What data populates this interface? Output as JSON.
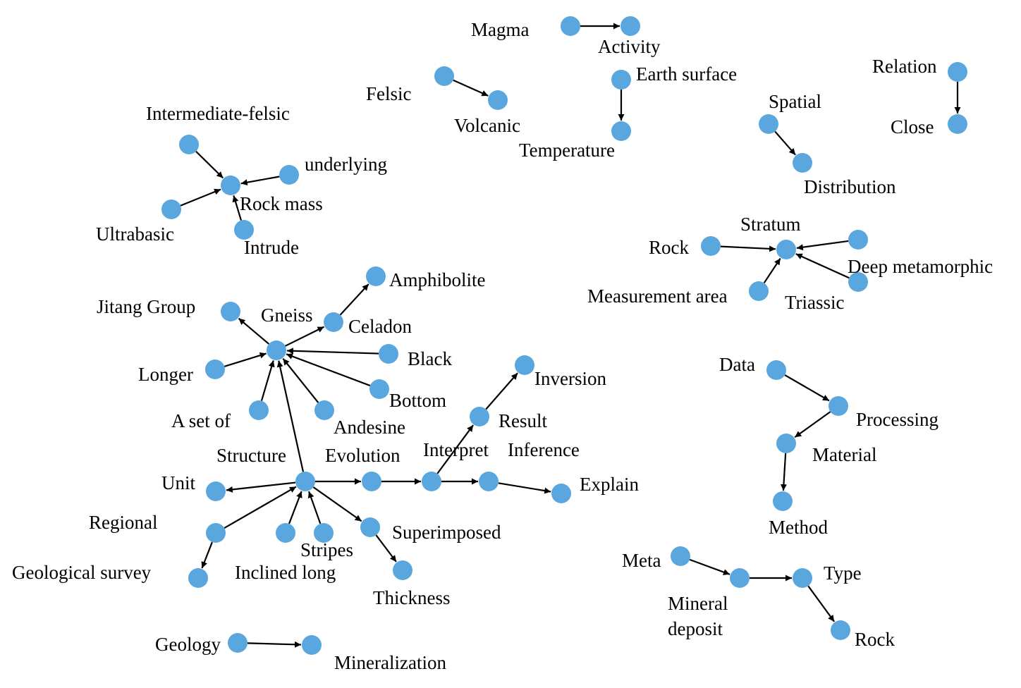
{
  "colors": {
    "node": "#5aa7df",
    "edge": "#000000",
    "label": "#000000"
  },
  "nodes": [
    {
      "id": "magma",
      "label": "Magma"
    },
    {
      "id": "activity",
      "label": "Activity"
    },
    {
      "id": "felsic",
      "label": "Felsic"
    },
    {
      "id": "volcanic",
      "label": "Volcanic"
    },
    {
      "id": "earth_surface",
      "label": "Earth surface"
    },
    {
      "id": "temperature",
      "label": "Temperature"
    },
    {
      "id": "relation",
      "label": "Relation"
    },
    {
      "id": "close",
      "label": "Close"
    },
    {
      "id": "spatial",
      "label": "Spatial"
    },
    {
      "id": "distribution",
      "label": "Distribution"
    },
    {
      "id": "intermediate_felsic",
      "label": "Intermediate-felsic"
    },
    {
      "id": "underlying",
      "label": "underlying"
    },
    {
      "id": "rock_mass",
      "label": "Rock mass"
    },
    {
      "id": "ultrabasic",
      "label": "Ultrabasic"
    },
    {
      "id": "intrude",
      "label": "Intrude"
    },
    {
      "id": "stratum",
      "label": "Stratum"
    },
    {
      "id": "rock1",
      "label": "Rock"
    },
    {
      "id": "deep_metamorphic",
      "label": "Deep metamorphic"
    },
    {
      "id": "unlabeled_deep",
      "label": ""
    },
    {
      "id": "measurement_area",
      "label": "Measurement area"
    },
    {
      "id": "triassic",
      "label": "Triassic"
    },
    {
      "id": "amphibolite",
      "label": "Amphibolite"
    },
    {
      "id": "jitang_group",
      "label": "Jitang Group"
    },
    {
      "id": "gneiss",
      "label": "Gneiss"
    },
    {
      "id": "celadon",
      "label": "Celadon"
    },
    {
      "id": "black",
      "label": "Black"
    },
    {
      "id": "longer",
      "label": "Longer"
    },
    {
      "id": "bottom",
      "label": "Bottom"
    },
    {
      "id": "a_set_of",
      "label": "A set of"
    },
    {
      "id": "andesine",
      "label": "Andesine"
    },
    {
      "id": "inversion",
      "label": "Inversion"
    },
    {
      "id": "result",
      "label": "Result"
    },
    {
      "id": "structure",
      "label": "Structure"
    },
    {
      "id": "evolution",
      "label": "Evolution"
    },
    {
      "id": "interpret",
      "label": "Interpret"
    },
    {
      "id": "inference",
      "label": "Inference"
    },
    {
      "id": "explain",
      "label": "Explain"
    },
    {
      "id": "unit",
      "label": "Unit"
    },
    {
      "id": "regional",
      "label": "Regional"
    },
    {
      "id": "geological_survey",
      "label": "Geological survey"
    },
    {
      "id": "inclined_long",
      "label": "Inclined long"
    },
    {
      "id": "stripes",
      "label": "Stripes"
    },
    {
      "id": "superimposed",
      "label": "Superimposed"
    },
    {
      "id": "thickness",
      "label": "Thickness"
    },
    {
      "id": "geology",
      "label": "Geology"
    },
    {
      "id": "mineralization",
      "label": "Mineralization"
    },
    {
      "id": "data",
      "label": "Data"
    },
    {
      "id": "processing",
      "label": "Processing"
    },
    {
      "id": "material",
      "label": "Material"
    },
    {
      "id": "method",
      "label": "Method"
    },
    {
      "id": "meta",
      "label": "Meta"
    },
    {
      "id": "mineral_deposit",
      "label": "Mineral deposit"
    },
    {
      "id": "type",
      "label": "Type"
    },
    {
      "id": "rock2",
      "label": "Rock"
    }
  ],
  "edges": [
    {
      "from": "magma",
      "to": "activity"
    },
    {
      "from": "felsic",
      "to": "volcanic"
    },
    {
      "from": "earth_surface",
      "to": "temperature"
    },
    {
      "from": "relation",
      "to": "close"
    },
    {
      "from": "spatial",
      "to": "distribution"
    },
    {
      "from": "intermediate_felsic",
      "to": "rock_mass"
    },
    {
      "from": "underlying",
      "to": "rock_mass"
    },
    {
      "from": "ultrabasic",
      "to": "rock_mass"
    },
    {
      "from": "intrude",
      "to": "rock_mass"
    },
    {
      "from": "rock1",
      "to": "stratum"
    },
    {
      "from": "unlabeled_deep",
      "to": "stratum"
    },
    {
      "from": "measurement_area",
      "to": "stratum"
    },
    {
      "from": "deep_metamorphic",
      "to": "stratum"
    },
    {
      "from": "gneiss",
      "to": "jitang_group"
    },
    {
      "from": "gneiss",
      "to": "celadon"
    },
    {
      "from": "celadon",
      "to": "amphibolite"
    },
    {
      "from": "black",
      "to": "gneiss"
    },
    {
      "from": "longer",
      "to": "gneiss"
    },
    {
      "from": "bottom",
      "to": "gneiss"
    },
    {
      "from": "a_set_of",
      "to": "gneiss"
    },
    {
      "from": "andesine",
      "to": "gneiss"
    },
    {
      "from": "structure",
      "to": "gneiss"
    },
    {
      "from": "structure",
      "to": "unit"
    },
    {
      "from": "structure",
      "to": "evolution"
    },
    {
      "from": "evolution",
      "to": "interpret"
    },
    {
      "from": "interpret",
      "to": "result"
    },
    {
      "from": "result",
      "to": "inversion"
    },
    {
      "from": "interpret",
      "to": "inference"
    },
    {
      "from": "inference",
      "to": "explain"
    },
    {
      "from": "regional",
      "to": "structure"
    },
    {
      "from": "regional",
      "to": "geological_survey"
    },
    {
      "from": "inclined_long",
      "to": "structure"
    },
    {
      "from": "stripes",
      "to": "structure"
    },
    {
      "from": "structure",
      "to": "superimposed"
    },
    {
      "from": "superimposed",
      "to": "thickness"
    },
    {
      "from": "geology",
      "to": "mineralization"
    },
    {
      "from": "data",
      "to": "processing"
    },
    {
      "from": "processing",
      "to": "material"
    },
    {
      "from": "material",
      "to": "method"
    },
    {
      "from": "meta",
      "to": "mineral_deposit"
    },
    {
      "from": "mineral_deposit",
      "to": "type"
    },
    {
      "from": "type",
      "to": "rock2"
    }
  ]
}
